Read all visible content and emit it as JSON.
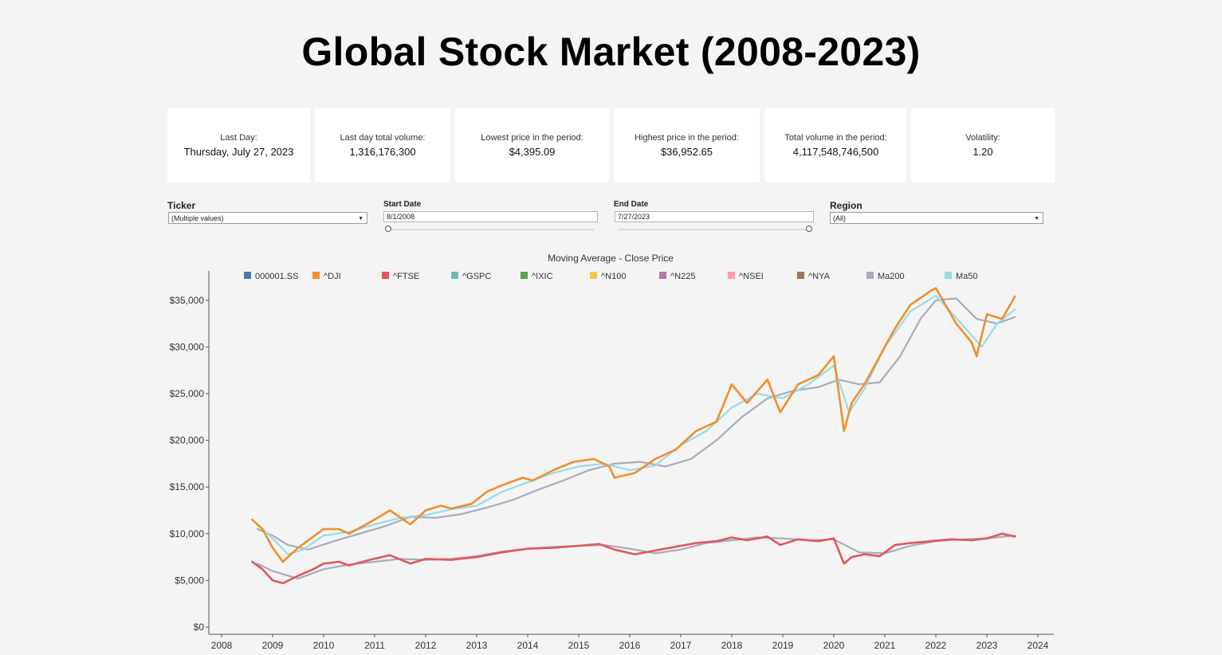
{
  "page": {
    "title": "Global Stock Market (2008-2023)"
  },
  "kpis": [
    {
      "label": "Last Day:",
      "value": "Thursday, July 27, 2023"
    },
    {
      "label": "Last day total volume:",
      "value": "1,316,176,300"
    },
    {
      "label": "Lowest price in the period:",
      "value": "$4,395.09"
    },
    {
      "label": "Highest price in the period:",
      "value": "$36,952.65"
    },
    {
      "label": "Total volume in the period:",
      "value": "4,117,548,746,500"
    },
    {
      "label": "Volatility:",
      "value": "1.20"
    }
  ],
  "filters": {
    "ticker": {
      "label": "Ticker",
      "value": "(Multiple values)"
    },
    "start_date": {
      "label": "Start Date",
      "value": "8/1/2008"
    },
    "end_date": {
      "label": "End Date",
      "value": "7/27/2023"
    },
    "region": {
      "label": "Region",
      "value": "(All)"
    }
  },
  "chart_data": {
    "type": "line",
    "title": "Moving Average - Close Price",
    "xlabel": "",
    "ylabel": "",
    "x_ticks": [
      "2008",
      "2009",
      "2010",
      "2011",
      "2012",
      "2013",
      "2014",
      "2015",
      "2016",
      "2017",
      "2018",
      "2019",
      "2020",
      "2021",
      "2022",
      "2023",
      "2024"
    ],
    "x_range": [
      2008,
      2024
    ],
    "y_ticks": [
      "$0",
      "$5,000",
      "$10,000",
      "$15,000",
      "$20,000",
      "$25,000",
      "$30,000",
      "$35,000"
    ],
    "y_range": [
      0,
      37000
    ],
    "legend_position": "top",
    "legend": [
      {
        "name": "000001.SS",
        "color": "#4e79a7"
      },
      {
        "name": "^DJI",
        "color": "#f28e2b"
      },
      {
        "name": "^FTSE",
        "color": "#e15759"
      },
      {
        "name": "^GSPC",
        "color": "#76b7b2"
      },
      {
        "name": "^IXIC",
        "color": "#59a14f"
      },
      {
        "name": "^N100",
        "color": "#edc948"
      },
      {
        "name": "^N225",
        "color": "#b07aa1"
      },
      {
        "name": "^NSEI",
        "color": "#ff9da7"
      },
      {
        "name": "^NYA",
        "color": "#9c755f"
      },
      {
        "name": "Ma200",
        "color": "#a5acbb"
      },
      {
        "name": "Ma50",
        "color": "#94dde8"
      }
    ],
    "series": [
      {
        "name": "^DJI",
        "color": "#f28e2b",
        "x": [
          2008.6,
          2008.8,
          2009.0,
          2009.2,
          2009.5,
          2009.8,
          2010.0,
          2010.3,
          2010.5,
          2010.9,
          2011.3,
          2011.7,
          2012.0,
          2012.3,
          2012.5,
          2012.9,
          2013.2,
          2013.5,
          2013.9,
          2014.1,
          2014.5,
          2014.9,
          2015.3,
          2015.6,
          2015.7,
          2016.1,
          2016.5,
          2016.9,
          2017.3,
          2017.7,
          2018.0,
          2018.3,
          2018.7,
          2018.95,
          2019.3,
          2019.7,
          2020.0,
          2020.2,
          2020.35,
          2020.6,
          2020.9,
          2021.2,
          2021.5,
          2021.9,
          2022.0,
          2022.4,
          2022.7,
          2022.8,
          2023.0,
          2023.3,
          2023.55
        ],
        "y": [
          11500,
          10500,
          8500,
          7000,
          8500,
          9700,
          10500,
          10500,
          10000,
          11200,
          12500,
          11000,
          12500,
          13000,
          12700,
          13200,
          14500,
          15200,
          16000,
          15700,
          16800,
          17700,
          18000,
          17200,
          16000,
          16500,
          18000,
          19000,
          21000,
          22000,
          26000,
          24000,
          26500,
          23000,
          26000,
          27000,
          29000,
          21000,
          24000,
          26000,
          29000,
          32000,
          34500,
          36000,
          36300,
          32500,
          30500,
          29000,
          33500,
          33000,
          35400
        ]
      },
      {
        "name": "^FTSE",
        "color": "#e15759",
        "x": [
          2008.6,
          2008.8,
          2009.0,
          2009.2,
          2009.5,
          2009.8,
          2010.0,
          2010.3,
          2010.5,
          2010.9,
          2011.3,
          2011.7,
          2012.0,
          2012.5,
          2013.0,
          2013.5,
          2014.0,
          2014.5,
          2015.0,
          2015.4,
          2015.7,
          2016.1,
          2016.5,
          2016.9,
          2017.3,
          2017.7,
          2018.0,
          2018.3,
          2018.7,
          2018.95,
          2019.3,
          2019.7,
          2020.0,
          2020.2,
          2020.35,
          2020.6,
          2020.9,
          2021.2,
          2021.5,
          2021.9,
          2022.3,
          2022.7,
          2023.0,
          2023.3,
          2023.55
        ],
        "y": [
          7000,
          6200,
          5000,
          4700,
          5500,
          6200,
          6800,
          7000,
          6600,
          7200,
          7700,
          6800,
          7300,
          7200,
          7500,
          8000,
          8400,
          8500,
          8700,
          8900,
          8300,
          7800,
          8200,
          8600,
          9000,
          9200,
          9600,
          9300,
          9700,
          8800,
          9400,
          9200,
          9500,
          6800,
          7500,
          7800,
          7600,
          8800,
          9000,
          9200,
          9400,
          9300,
          9500,
          10000,
          9700
        ]
      },
      {
        "name": "Ma50",
        "color": "#94dde8",
        "x": [
          2008.7,
          2009.0,
          2009.3,
          2009.6,
          2010.0,
          2010.5,
          2011.0,
          2011.5,
          2012.0,
          2012.5,
          2013.0,
          2013.5,
          2014.0,
          2014.5,
          2015.0,
          2015.5,
          2016.0,
          2016.5,
          2017.0,
          2017.5,
          2018.0,
          2018.5,
          2019.0,
          2019.5,
          2020.0,
          2020.3,
          2020.6,
          2021.0,
          2021.5,
          2022.0,
          2022.5,
          2022.9,
          2023.2,
          2023.55
        ],
        "y": [
          11000,
          9500,
          7800,
          8300,
          9800,
          10200,
          11000,
          11700,
          12000,
          12600,
          13000,
          14500,
          15500,
          16500,
          17200,
          17500,
          16800,
          17300,
          19500,
          21000,
          23500,
          25000,
          24500,
          26000,
          28000,
          23000,
          25500,
          30000,
          33800,
          35500,
          32500,
          30000,
          32500,
          34000
        ]
      },
      {
        "name": "Ma200",
        "color": "#a5acbb",
        "x": [
          2008.7,
          2009.0,
          2009.3,
          2009.7,
          2010.2,
          2010.7,
          2011.2,
          2011.7,
          2012.2,
          2012.7,
          2013.2,
          2013.7,
          2014.2,
          2014.7,
          2015.2,
          2015.7,
          2016.2,
          2016.7,
          2017.2,
          2017.7,
          2018.2,
          2018.7,
          2019.2,
          2019.7,
          2020.1,
          2020.5,
          2020.9,
          2021.3,
          2021.7,
          2022.0,
          2022.4,
          2022.8,
          2023.2,
          2023.55
        ],
        "y": [
          10500,
          9800,
          8800,
          8300,
          9200,
          10000,
          10800,
          11800,
          11700,
          12100,
          12800,
          13600,
          14700,
          15700,
          16800,
          17500,
          17700,
          17200,
          18000,
          20000,
          22500,
          24500,
          25300,
          25700,
          26500,
          26000,
          26200,
          29000,
          33000,
          35000,
          35200,
          33000,
          32500,
          33200
        ]
      },
      {
        "name": "^FTSE Ma",
        "color": "#a5acbb",
        "x": [
          2008.7,
          2009.0,
          2009.5,
          2010.0,
          2010.5,
          2011.0,
          2011.5,
          2012.0,
          2012.5,
          2013.0,
          2013.5,
          2014.0,
          2014.5,
          2015.0,
          2015.5,
          2016.0,
          2016.5,
          2017.0,
          2017.5,
          2018.0,
          2018.5,
          2019.0,
          2019.5,
          2020.0,
          2020.5,
          2021.0,
          2021.5,
          2022.0,
          2022.5,
          2023.0,
          2023.55
        ],
        "y": [
          6800,
          6000,
          5200,
          6200,
          6700,
          7000,
          7300,
          7200,
          7300,
          7600,
          8100,
          8400,
          8600,
          8700,
          8800,
          8400,
          7900,
          8300,
          9000,
          9300,
          9600,
          9500,
          9300,
          9400,
          8000,
          7900,
          8700,
          9200,
          9400,
          9500,
          9800
        ]
      }
    ]
  }
}
